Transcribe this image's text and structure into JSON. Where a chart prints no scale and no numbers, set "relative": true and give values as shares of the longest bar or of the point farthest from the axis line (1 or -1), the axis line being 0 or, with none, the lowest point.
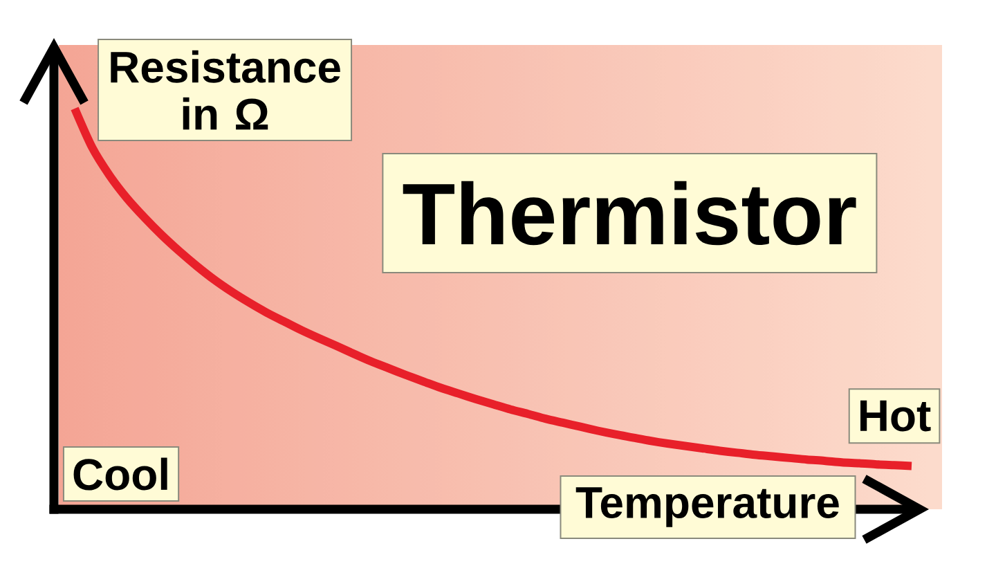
{
  "chart_data": {
    "type": "line",
    "title": "Thermistor",
    "xlabel": "Temperature",
    "ylabel": "Resistance in Ω",
    "annotations": [
      "Cool",
      "Hot"
    ],
    "relative": true,
    "categories": [
      null,
      null,
      null,
      null,
      null,
      null,
      null,
      null,
      null,
      null,
      null,
      null,
      null,
      null,
      null,
      null,
      null,
      null,
      null,
      null,
      null,
      null,
      null,
      null,
      null,
      null,
      null,
      null,
      null,
      null,
      null,
      null,
      null,
      null,
      null,
      null,
      null,
      null,
      null,
      null,
      null,
      null,
      null,
      null,
      null,
      null,
      null,
      null,
      null
    ],
    "series": [
      {
        "color": "#e8202a",
        "values": [
          1,
          0.903,
          0.833,
          0.776,
          0.728,
          0.684,
          0.644,
          0.607,
          0.573,
          0.543,
          0.516,
          0.491,
          0.469,
          0.447,
          0.427,
          0.408,
          0.388,
          0.369,
          0.352,
          0.335,
          0.319,
          0.303,
          0.289,
          0.275,
          0.262,
          0.249,
          0.238,
          0.226,
          0.216,
          0.206,
          0.196,
          0.187,
          0.179,
          0.171,
          0.164,
          0.158,
          0.152,
          0.146,
          0.141,
          0.136,
          0.132,
          0.128,
          0.124,
          0.121,
          0.117,
          0.115,
          0.112,
          0.11,
          0.108
        ]
      }
    ]
  }
}
